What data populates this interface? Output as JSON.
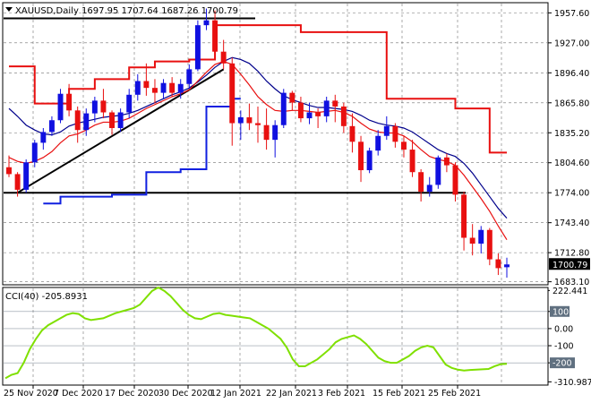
{
  "header": {
    "symbol_line": "XAUUSD,Daily  1697.95 1707.64 1687.26 1700.79",
    "cci_label": "CCI(40) -205.8931"
  },
  "colors": {
    "bull": "#1010e0",
    "bear": "#e81010",
    "ma_fast": "#e81010",
    "ma_slow": "#00008b",
    "cci": "#7fe000",
    "trend": "#000000",
    "level": "#0000a0",
    "price_tag_bg": "#000000"
  },
  "chart_data": [
    {
      "type": "candlestick",
      "title": "XAUUSD,Daily",
      "x_labels": [
        "25 Nov 2020",
        "7 Dec 2020",
        "17 Dec 2020",
        "30 Dec 2020",
        "12 Jan 2021",
        "22 Jan 2021",
        "3 Feb 2021",
        "15 Feb 2021",
        "25 Feb 2021"
      ],
      "y_ticks": [
        1683.1,
        1712.8,
        1743.4,
        1774.0,
        1804.6,
        1835.2,
        1865.8,
        1896.4,
        1927.0,
        1957.6
      ],
      "ylim": [
        1680,
        1968
      ],
      "current_price": "1700.79",
      "candles": [
        [
          1800,
          1812,
          1790,
          1793
        ],
        [
          1793,
          1795,
          1770,
          1777
        ],
        [
          1777,
          1808,
          1774,
          1805
        ],
        [
          1805,
          1828,
          1800,
          1825
        ],
        [
          1825,
          1840,
          1818,
          1836
        ],
        [
          1836,
          1852,
          1832,
          1848
        ],
        [
          1848,
          1880,
          1845,
          1875
        ],
        [
          1875,
          1885,
          1852,
          1858
        ],
        [
          1858,
          1862,
          1825,
          1838
        ],
        [
          1838,
          1860,
          1832,
          1855
        ],
        [
          1855,
          1872,
          1846,
          1868
        ],
        [
          1868,
          1880,
          1850,
          1856
        ],
        [
          1856,
          1858,
          1833,
          1840
        ],
        [
          1840,
          1860,
          1836,
          1856
        ],
        [
          1856,
          1880,
          1850,
          1874
        ],
        [
          1874,
          1895,
          1868,
          1888
        ],
        [
          1888,
          1906,
          1873,
          1881
        ],
        [
          1881,
          1890,
          1865,
          1876
        ],
        [
          1876,
          1890,
          1870,
          1886
        ],
        [
          1886,
          1892,
          1872,
          1876
        ],
        [
          1876,
          1890,
          1870,
          1885
        ],
        [
          1885,
          1905,
          1880,
          1900
        ],
        [
          1900,
          1950,
          1898,
          1945
        ],
        [
          1945,
          1962,
          1940,
          1950
        ],
        [
          1950,
          1960,
          1912,
          1918
        ],
        [
          1918,
          1930,
          1900,
          1906
        ],
        [
          1906,
          1912,
          1822,
          1845
        ],
        [
          1845,
          1858,
          1828,
          1851
        ],
        [
          1851,
          1865,
          1838,
          1845
        ],
        [
          1845,
          1862,
          1825,
          1843
        ],
        [
          1843,
          1860,
          1818,
          1828
        ],
        [
          1828,
          1848,
          1810,
          1843
        ],
        [
          1843,
          1880,
          1840,
          1876
        ],
        [
          1876,
          1878,
          1858,
          1866
        ],
        [
          1866,
          1872,
          1846,
          1850
        ],
        [
          1850,
          1866,
          1844,
          1856
        ],
        [
          1856,
          1860,
          1840,
          1852
        ],
        [
          1852,
          1872,
          1846,
          1868
        ],
        [
          1868,
          1874,
          1846,
          1862
        ],
        [
          1862,
          1866,
          1835,
          1842
        ],
        [
          1842,
          1855,
          1815,
          1826
        ],
        [
          1826,
          1832,
          1785,
          1797
        ],
        [
          1797,
          1820,
          1794,
          1817
        ],
        [
          1817,
          1838,
          1812,
          1832
        ],
        [
          1832,
          1852,
          1828,
          1842
        ],
        [
          1842,
          1845,
          1820,
          1826
        ],
        [
          1826,
          1832,
          1810,
          1818
        ],
        [
          1818,
          1828,
          1790,
          1795
        ],
        [
          1795,
          1798,
          1765,
          1775
        ],
        [
          1775,
          1790,
          1770,
          1782
        ],
        [
          1782,
          1812,
          1778,
          1810
        ],
        [
          1810,
          1814,
          1795,
          1802
        ],
        [
          1802,
          1805,
          1765,
          1772
        ],
        [
          1772,
          1775,
          1715,
          1728
        ],
        [
          1728,
          1742,
          1710,
          1722
        ],
        [
          1722,
          1740,
          1712,
          1736
        ],
        [
          1736,
          1738,
          1700,
          1706
        ],
        [
          1706,
          1712,
          1690,
          1697
        ],
        [
          1697.95,
          1707.64,
          1687.26,
          1700.79
        ]
      ],
      "ma_fast_series": [
        1810,
        1806,
        1804,
        1806,
        1810,
        1816,
        1825,
        1832,
        1834,
        1838,
        1843,
        1846,
        1846,
        1847,
        1850,
        1855,
        1860,
        1864,
        1868,
        1872,
        1875,
        1879,
        1888,
        1897,
        1905,
        1908,
        1905,
        1895,
        1884,
        1872,
        1864,
        1858,
        1857,
        1858,
        1858,
        1857,
        1856,
        1857,
        1858,
        1856,
        1852,
        1845,
        1839,
        1836,
        1835,
        1835,
        1832,
        1826,
        1818,
        1811,
        1808,
        1806,
        1802,
        1792,
        1780,
        1768,
        1755,
        1740,
        1726
      ],
      "ma_slow_series": [
        1860,
        1852,
        1843,
        1838,
        1834,
        1833,
        1836,
        1842,
        1845,
        1847,
        1849,
        1851,
        1852,
        1853,
        1855,
        1858,
        1862,
        1866,
        1870,
        1874,
        1877,
        1881,
        1887,
        1894,
        1902,
        1908,
        1912,
        1910,
        1906,
        1898,
        1888,
        1880,
        1873,
        1869,
        1866,
        1863,
        1861,
        1861,
        1860,
        1859,
        1857,
        1853,
        1848,
        1845,
        1843,
        1842,
        1840,
        1836,
        1830,
        1824,
        1818,
        1814,
        1811,
        1804,
        1794,
        1782,
        1770,
        1758,
        1748
      ],
      "upper_band_steps": [
        [
          0,
          1903
        ],
        [
          3,
          1865
        ],
        [
          7,
          1880
        ],
        [
          10,
          1890
        ],
        [
          14,
          1902
        ],
        [
          17,
          1908
        ],
        [
          21,
          1910
        ],
        [
          24,
          1945
        ],
        [
          34,
          1938
        ],
        [
          44,
          1870
        ],
        [
          52,
          1860
        ],
        [
          56,
          1815
        ]
      ],
      "lower_band_steps": [
        [
          4,
          1763
        ],
        [
          6,
          1770
        ],
        [
          12,
          1772
        ],
        [
          16,
          1795
        ],
        [
          20,
          1798
        ],
        [
          23,
          1862
        ],
        [
          26,
          1870
        ]
      ],
      "resistance_level": 1952,
      "support_level": 1774
    },
    {
      "type": "line",
      "title": "CCI(40)",
      "series": [
        {
          "values": [
            -290,
            -270,
            -260,
            -200,
            -120,
            -60,
            -10,
            20,
            40,
            60,
            80,
            90,
            85,
            60,
            50,
            55,
            60,
            75,
            90,
            100,
            110,
            120,
            140,
            180,
            220,
            240,
            220,
            190,
            150,
            110,
            80,
            60,
            55,
            70,
            85,
            90,
            80,
            75,
            70,
            65,
            60,
            40,
            20,
            0,
            -30,
            -60,
            -110,
            -180,
            -220,
            -220,
            -200,
            -180,
            -150,
            -120,
            -80,
            -60,
            -50,
            -40,
            -60,
            -90,
            -130,
            -170,
            -190,
            -200,
            -200,
            -180,
            -160,
            -130,
            -110,
            -100,
            -110,
            -160,
            -210,
            -230,
            -240,
            -245,
            -242,
            -240,
            -238,
            -236,
            -220,
            -208,
            -205.8931
          ]
        }
      ],
      "y_ticks": [
        222.441,
        100,
        0.0,
        -100,
        -200,
        -310.9872
      ],
      "ylim": [
        -330,
        240
      ],
      "current_value": "-205.8931"
    }
  ],
  "price_axis_labels": [
    "1957.60",
    "1927.00",
    "1896.40",
    "1865.80",
    "1835.20",
    "1804.60",
    "1774.00",
    "1743.40",
    "1712.80",
    "1700.79",
    "1683.10"
  ],
  "cci_axis_labels": [
    "222.441",
    "100",
    "0.00",
    "-100",
    "-200",
    "-310.9872"
  ]
}
